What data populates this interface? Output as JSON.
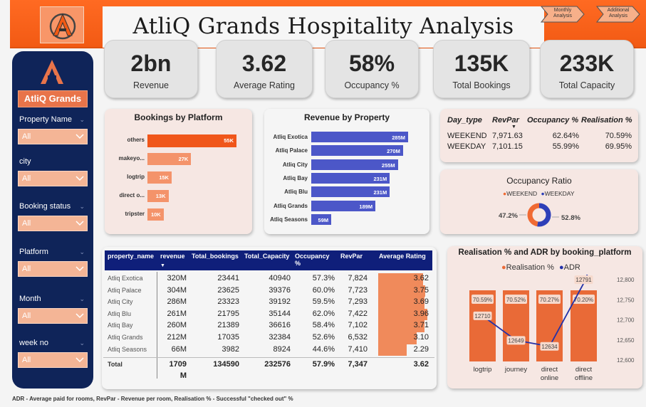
{
  "header": {
    "title": "AtliQ Grands Hospitality Analysis",
    "nav": [
      "Monthly Analysis",
      "Additional Analysis"
    ]
  },
  "sidebar": {
    "brand": "AtliQ Grands",
    "filters": [
      {
        "label": "Property Name",
        "value": "All"
      },
      {
        "label": "city",
        "value": "All"
      },
      {
        "label": "Booking status",
        "value": "All"
      },
      {
        "label": "Platform",
        "value": "All"
      },
      {
        "label": "Month",
        "value": "All"
      },
      {
        "label": "week no",
        "value": "All"
      }
    ]
  },
  "kpis": [
    {
      "value": "2bn",
      "label": "Revenue"
    },
    {
      "value": "3.62",
      "label": "Average Rating"
    },
    {
      "value": "58%",
      "label": "Occupancy %"
    },
    {
      "value": "135K",
      "label": "Total Bookings"
    },
    {
      "value": "233K",
      "label": "Total Capacity"
    }
  ],
  "bookings_by_platform": {
    "title": "Bookings by Platform",
    "categories": [
      "others",
      "makeyo...",
      "logtrip",
      "direct o...",
      "tripster"
    ],
    "values": [
      55,
      27,
      15,
      13,
      10
    ],
    "labels": [
      "55K",
      "27K",
      "15K",
      "13K",
      "10K"
    ],
    "colors": [
      "#f0561a",
      "#f4936a",
      "#f4936a",
      "#f4936a",
      "#f4936a"
    ]
  },
  "revenue_by_property": {
    "title": "Revenue by Property",
    "categories": [
      "Atliq Exotica",
      "Atliq Palace",
      "Atliq City",
      "Atliq Bay",
      "Atliq Blu",
      "Atliq Grands",
      "Atliq Seasons"
    ],
    "values": [
      285,
      270,
      255,
      231,
      231,
      189,
      59
    ],
    "labels": [
      "285M",
      "270M",
      "255M",
      "231M",
      "231M",
      "189M",
      "59M"
    ],
    "color": "#4c57c8"
  },
  "day_type": {
    "headers": [
      "Day_type",
      "RevPar",
      "Occupancy %",
      "Realisation %"
    ],
    "rows": [
      [
        "WEEKEND",
        "7,971.63",
        "62.64%",
        "70.59%"
      ],
      [
        "WEEKDAY",
        "7,101.15",
        "55.99%",
        "69.95%"
      ]
    ]
  },
  "occupancy_ratio": {
    "title": "Occupancy Ratio",
    "legend": [
      "WEEKEND",
      "WEEKDAY"
    ],
    "values": [
      47.2,
      52.8
    ],
    "labels": [
      "47.2%",
      "52.8%"
    ],
    "colors": [
      "#f06a33",
      "#2e3fb8"
    ]
  },
  "property_table": {
    "headers": [
      "property_name",
      "revenue",
      "Total_bookings",
      "Total_Capacity",
      "Occupancy %",
      "RevPar",
      "Average Rating"
    ],
    "rows": [
      [
        "Atliq Exotica",
        "320M",
        "23441",
        "40940",
        "57.3%",
        "7,824",
        "3.62"
      ],
      [
        "Atliq Palace",
        "304M",
        "23625",
        "39376",
        "60.0%",
        "7,723",
        "3.75"
      ],
      [
        "Atliq City",
        "286M",
        "23323",
        "39192",
        "59.5%",
        "7,293",
        "3.69"
      ],
      [
        "Atliq Blu",
        "261M",
        "21795",
        "35144",
        "62.0%",
        "7,422",
        "3.96"
      ],
      [
        "Atliq Bay",
        "260M",
        "21389",
        "36616",
        "58.4%",
        "7,102",
        "3.71"
      ],
      [
        "Atliq Grands",
        "212M",
        "17035",
        "32384",
        "52.6%",
        "6,532",
        "3.10"
      ],
      [
        "Atliq Seasons",
        "66M",
        "3982",
        "8924",
        "44.6%",
        "7,410",
        "2.29"
      ]
    ],
    "ratings": [
      3.62,
      3.75,
      3.69,
      3.96,
      3.71,
      3.1,
      2.29
    ],
    "total": [
      "Total",
      "1709",
      "M",
      "134590",
      "232576",
      "57.9%",
      "7,347",
      "3.62"
    ]
  },
  "realisation_chart": {
    "title": "Realisation % and ADR by booking_platform",
    "legend": [
      "Realisation %",
      "ADR"
    ],
    "categories": [
      "logtrip",
      "journey",
      "direct online",
      "direct offline"
    ],
    "category_lines": [
      [
        "logtrip"
      ],
      [
        "journey"
      ],
      [
        "direct",
        "online"
      ],
      [
        "direct",
        "offline"
      ]
    ],
    "realisation": [
      70.59,
      70.52,
      70.27,
      70.2
    ],
    "realisation_labels": [
      "70.59%",
      "70.52%",
      "70.27%",
      "70.20%"
    ],
    "adr": [
      12710,
      12649,
      12634,
      12791
    ],
    "adr_labels": [
      "12710",
      "12649",
      "12634",
      "12791"
    ],
    "y2_ticks": [
      "12,800",
      "12,750",
      "12,700",
      "12,650",
      "12,600"
    ],
    "y2_range": [
      12600,
      12800
    ],
    "colors": {
      "bar": "#e96a37",
      "line": "#2230a8"
    }
  },
  "footer": "ADR - Average paid for rooms,  RevPar - Revenue per room,  Realisation % - Successful \"checked out\" %"
}
